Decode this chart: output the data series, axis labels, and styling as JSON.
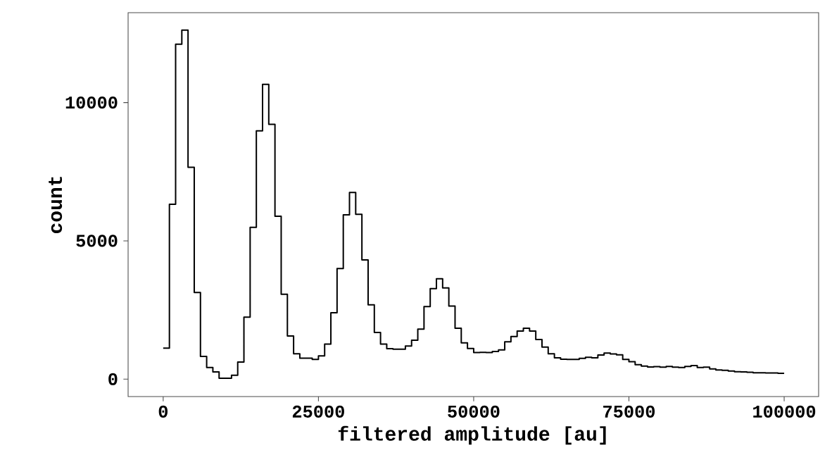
{
  "chart_data": {
    "type": "histogram",
    "xlabel": "filtered amplitude [au]",
    "ylabel": "count",
    "color": "#000000",
    "bins": [
      0,
      1000,
      2000,
      3000,
      4000,
      5000,
      6000,
      7000,
      8000,
      9000,
      10000,
      11000,
      12000,
      13000,
      14000,
      15000,
      16000,
      17000,
      18000,
      19000,
      20000,
      21000,
      22000,
      23000,
      24000,
      25000,
      26000,
      27000,
      28000,
      29000,
      30000,
      31000,
      32000,
      33000,
      34000,
      35000,
      36000,
      37000,
      38000,
      39000,
      40000,
      41000,
      42000,
      43000,
      44000,
      45000,
      46000,
      47000,
      48000,
      49000,
      50000,
      51000,
      52000,
      53000,
      54000,
      55000,
      56000,
      57000,
      58000,
      59000,
      60000,
      61000,
      62000,
      63000,
      64000,
      65000,
      66000,
      67000,
      68000,
      69000,
      70000,
      71000,
      72000,
      73000,
      74000,
      75000,
      76000,
      77000,
      78000,
      79000,
      80000,
      81000,
      82000,
      83000,
      84000,
      85000,
      86000,
      87000,
      88000,
      89000,
      90000,
      91000,
      92000,
      93000,
      94000,
      95000,
      96000,
      97000,
      98000,
      99000,
      100000
    ],
    "values": [
      1120,
      6320,
      12110,
      12620,
      7660,
      3130,
      820,
      420,
      260,
      30,
      30,
      140,
      620,
      2240,
      5490,
      8980,
      10660,
      9210,
      5890,
      3070,
      1560,
      920,
      760,
      760,
      710,
      840,
      1270,
      2400,
      4000,
      5940,
      6750,
      5960,
      4310,
      2690,
      1690,
      1270,
      1100,
      1080,
      1080,
      1200,
      1410,
      1810,
      2620,
      3270,
      3630,
      3300,
      2640,
      1840,
      1310,
      1110,
      960,
      970,
      960,
      1000,
      1060,
      1350,
      1540,
      1740,
      1840,
      1740,
      1430,
      1160,
      920,
      770,
      720,
      710,
      710,
      750,
      790,
      770,
      870,
      940,
      910,
      880,
      710,
      630,
      520,
      470,
      440,
      450,
      430,
      460,
      430,
      420,
      460,
      490,
      420,
      430,
      370,
      330,
      320,
      290,
      270,
      260,
      250,
      230,
      230,
      220,
      220,
      210
    ],
    "xlim": [
      -5650,
      105550
    ],
    "ylim": [
      -630,
      13250
    ],
    "xticks": [
      0,
      25000,
      50000,
      75000,
      100000
    ],
    "yticks": [
      0,
      5000,
      10000
    ]
  }
}
